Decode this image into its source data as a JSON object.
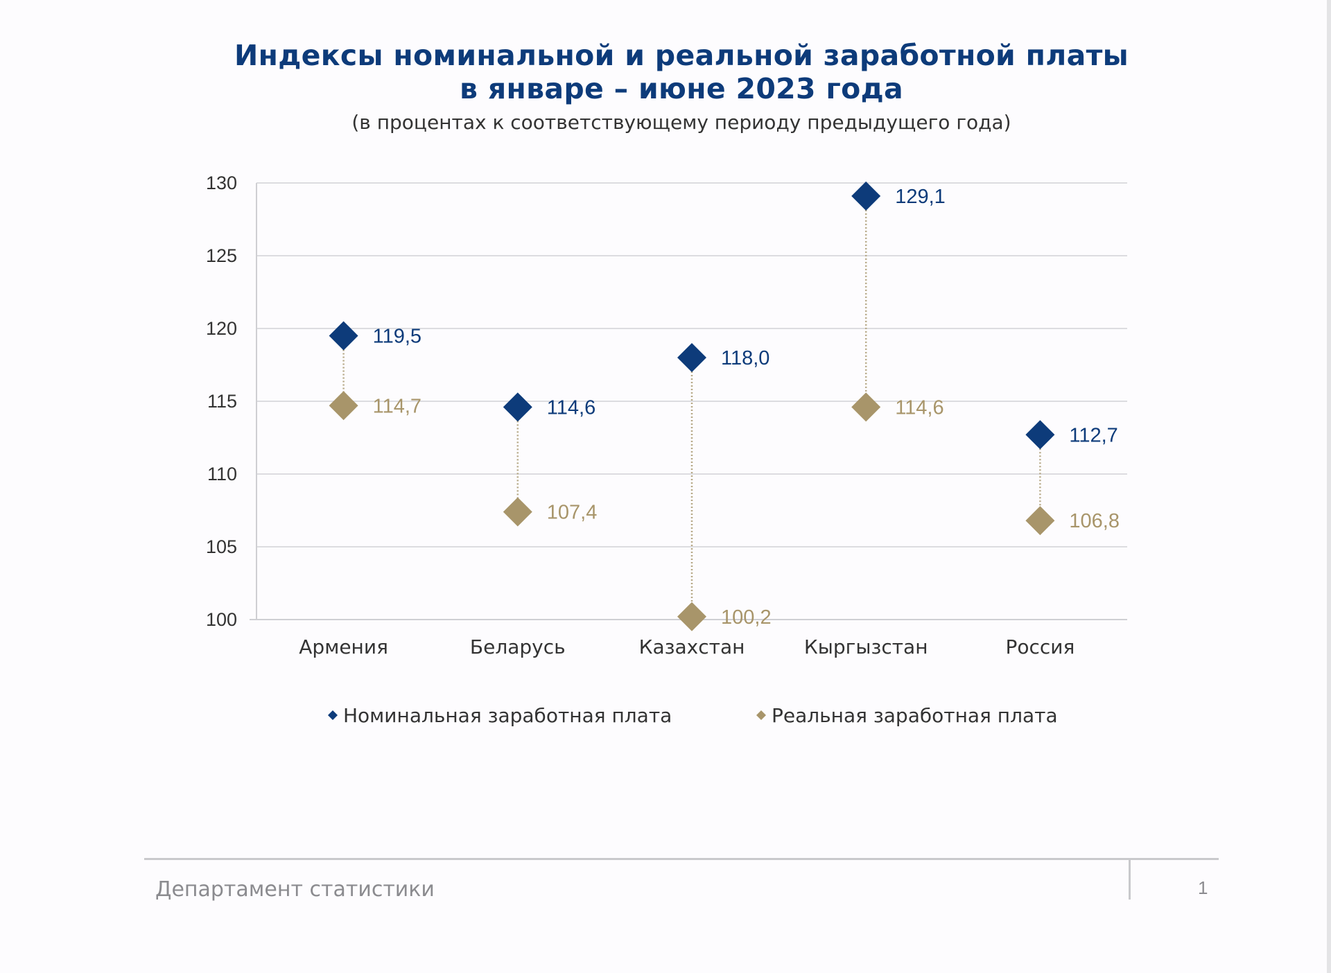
{
  "chart_data": {
    "type": "scatter",
    "title": "Индексы номинальной и реальной заработной платы",
    "title_line2": "в январе – июне 2023 года",
    "subtitle": "(в процентах к соответствующему периоду предыдущего года)",
    "categories": [
      "Армения",
      "Беларусь",
      "Казахстан",
      "Кыргызстан",
      "Россия"
    ],
    "series": [
      {
        "name": "Номинальная заработная плата",
        "color": "#0d3b7a",
        "values": [
          119.5,
          114.6,
          118.0,
          129.1,
          112.7
        ],
        "labels": [
          "119,5",
          "114,6",
          "118,0",
          "129,1",
          "112,7"
        ]
      },
      {
        "name": "Реальная заработная плата",
        "color": "#a8956a",
        "values": [
          114.7,
          107.4,
          100.2,
          114.6,
          106.8
        ],
        "labels": [
          "114,7",
          "107,4",
          "100,2",
          "114,6",
          "106,8"
        ]
      }
    ],
    "ylim": [
      100,
      130
    ],
    "yticks": [
      100,
      105,
      110,
      115,
      120,
      125,
      130
    ],
    "grid": true,
    "connector": "dotted vertical line between series",
    "legend_position": "bottom"
  },
  "footer": {
    "department": "Департамент статистики",
    "page": "1"
  }
}
